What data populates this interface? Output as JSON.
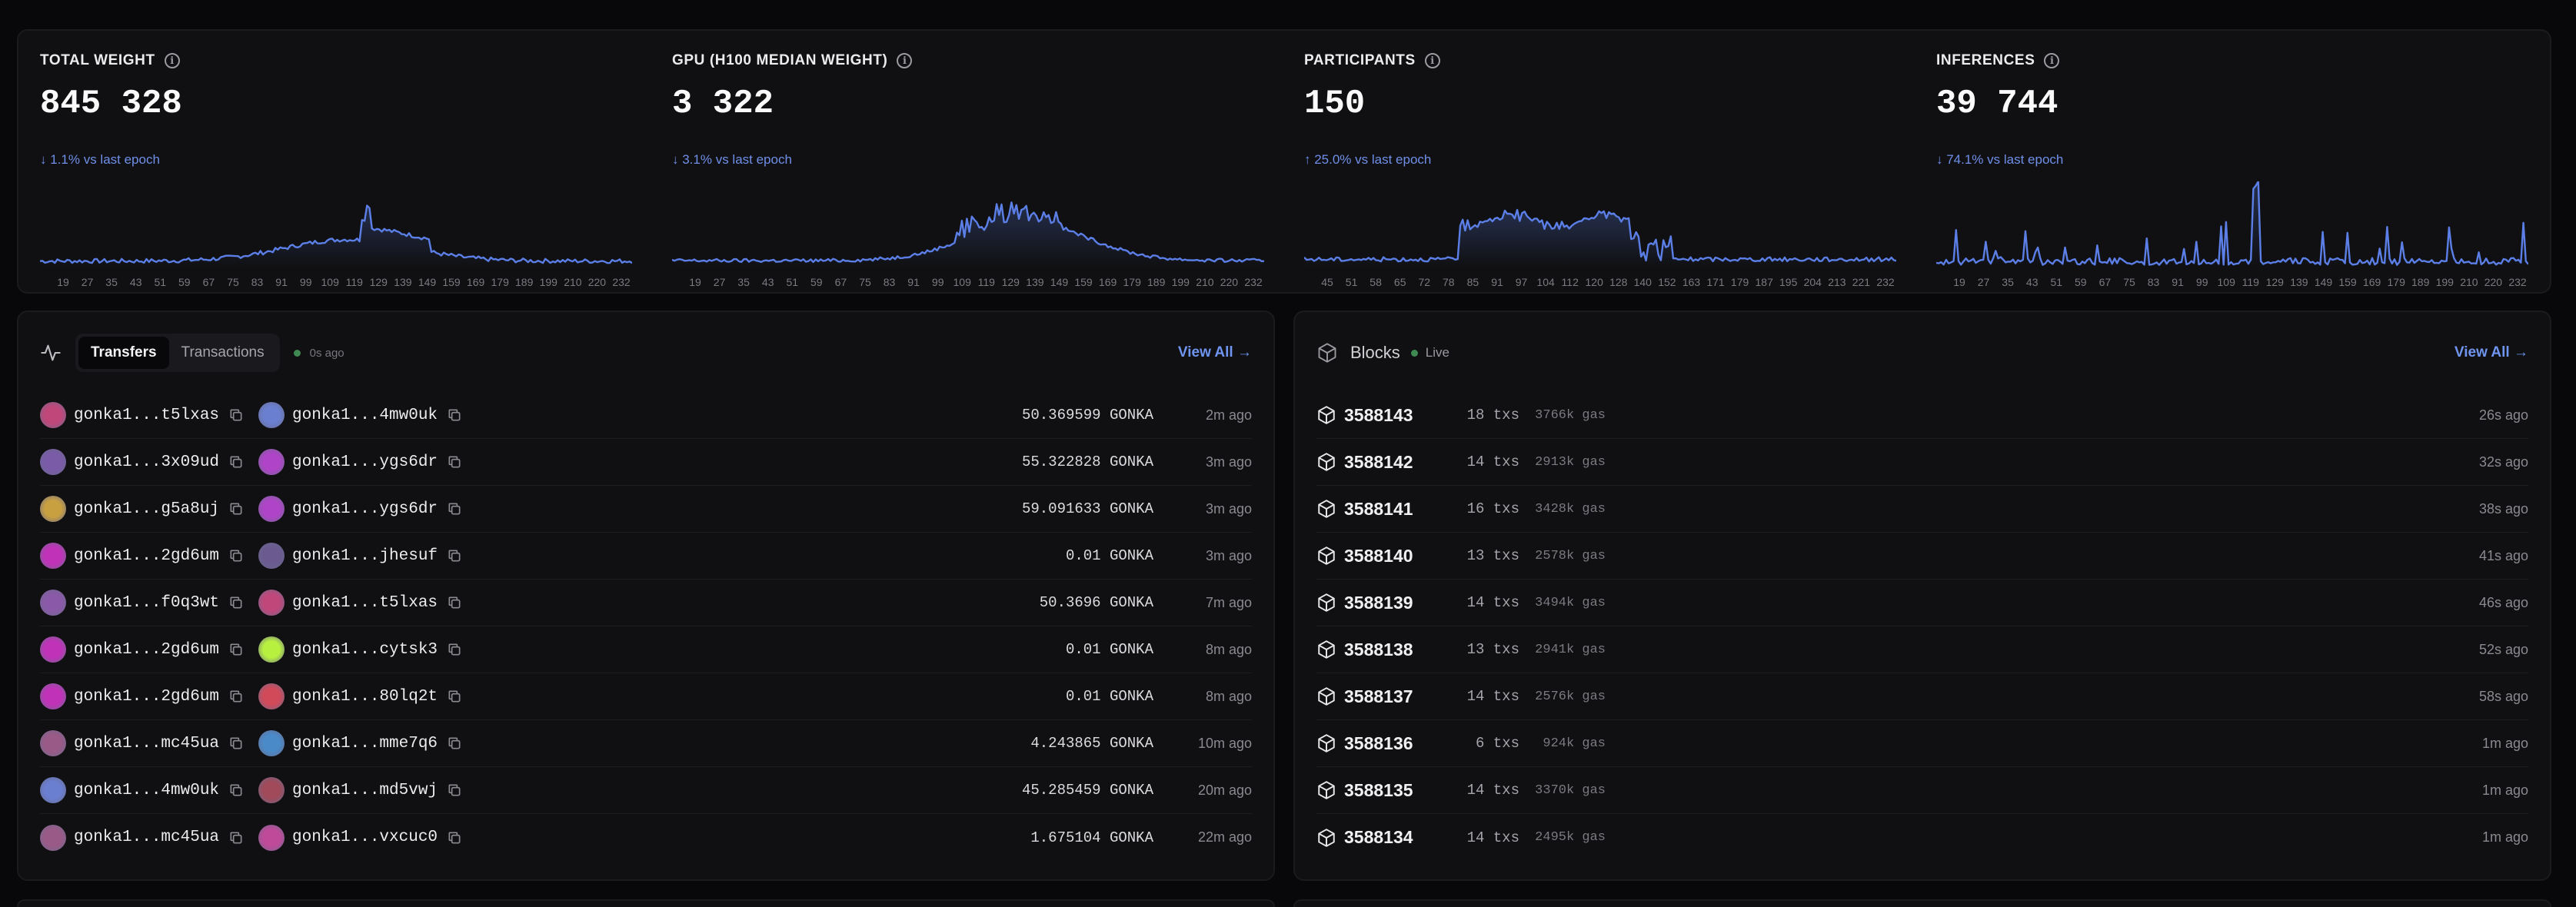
{
  "colors": {
    "accent": "#6f95f0",
    "line": "#5b7fe6",
    "live": "#3f8a52"
  },
  "stats": [
    {
      "title": "TOTAL WEIGHT",
      "value": "845 328",
      "change": "↓ 1.1% vs last epoch",
      "ticks": [
        "19",
        "27",
        "35",
        "43",
        "51",
        "59",
        "67",
        "75",
        "83",
        "91",
        "99",
        "109",
        "119",
        "129",
        "139",
        "149",
        "159",
        "169",
        "179",
        "189",
        "199",
        "210",
        "220",
        "232"
      ]
    },
    {
      "title": "GPU (H100 MEDIAN WEIGHT)",
      "value": "3 322",
      "change": "↓ 3.1% vs last epoch",
      "ticks": [
        "19",
        "27",
        "35",
        "43",
        "51",
        "59",
        "67",
        "75",
        "83",
        "91",
        "99",
        "109",
        "119",
        "129",
        "139",
        "149",
        "159",
        "169",
        "179",
        "189",
        "199",
        "210",
        "220",
        "232"
      ]
    },
    {
      "title": "PARTICIPANTS",
      "value": "150",
      "change": "↑ 25.0% vs last epoch",
      "ticks": [
        "45",
        "51",
        "58",
        "65",
        "72",
        "78",
        "85",
        "91",
        "97",
        "104",
        "112",
        "120",
        "128",
        "140",
        "152",
        "163",
        "171",
        "179",
        "187",
        "195",
        "204",
        "213",
        "221",
        "232"
      ]
    },
    {
      "title": "INFERENCES",
      "value": "39 744",
      "change": "↓ 74.1% vs last epoch",
      "ticks": [
        "19",
        "27",
        "35",
        "43",
        "51",
        "59",
        "67",
        "75",
        "83",
        "91",
        "99",
        "109",
        "119",
        "129",
        "139",
        "149",
        "159",
        "169",
        "179",
        "189",
        "199",
        "210",
        "220",
        "232"
      ]
    }
  ],
  "transfers": {
    "tabs": [
      "Transfers",
      "Transactions"
    ],
    "active_tab": "Transfers",
    "updated": "0s ago",
    "view_all": "View All →",
    "rows": [
      {
        "from": "gonka1...t5lxas",
        "to": "gonka1...4mw0uk",
        "amount": "50.369599 GONKA",
        "time": "2m ago",
        "from_color": "#c0477a",
        "to_color": "#6a7fd0"
      },
      {
        "from": "gonka1...3x09ud",
        "to": "gonka1...ygs6dr",
        "amount": "55.322828 GONKA",
        "time": "3m ago",
        "from_color": "#7a5ba8",
        "to_color": "#b044c8"
      },
      {
        "from": "gonka1...g5a8uj",
        "to": "gonka1...ygs6dr",
        "amount": "59.091633 GONKA",
        "time": "3m ago",
        "from_color": "#c9a040",
        "to_color": "#b044c8"
      },
      {
        "from": "gonka1...2gd6um",
        "to": "gonka1...jhesuf",
        "amount": "0.01 GONKA",
        "time": "3m ago",
        "from_color": "#c032b8",
        "to_color": "#6a5a90"
      },
      {
        "from": "gonka1...f0q3wt",
        "to": "gonka1...t5lxas",
        "amount": "50.3696 GONKA",
        "time": "7m ago",
        "from_color": "#8a5aa8",
        "to_color": "#c0477a"
      },
      {
        "from": "gonka1...2gd6um",
        "to": "gonka1...cytsk3",
        "amount": "0.01 GONKA",
        "time": "8m ago",
        "from_color": "#c032b8",
        "to_color": "#b8f040"
      },
      {
        "from": "gonka1...2gd6um",
        "to": "gonka1...80lq2t",
        "amount": "0.01 GONKA",
        "time": "8m ago",
        "from_color": "#c032b8",
        "to_color": "#d04a5a"
      },
      {
        "from": "gonka1...mc45ua",
        "to": "gonka1...mme7q6",
        "amount": "4.243865 GONKA",
        "time": "10m ago",
        "from_color": "#9a5a88",
        "to_color": "#4a8ac8"
      },
      {
        "from": "gonka1...4mw0uk",
        "to": "gonka1...md5vwj",
        "amount": "45.285459 GONKA",
        "time": "20m ago",
        "from_color": "#6a7fd0",
        "to_color": "#a04a5a"
      },
      {
        "from": "gonka1...mc45ua",
        "to": "gonka1...vxcuc0",
        "amount": "1.675104 GONKA",
        "time": "22m ago",
        "from_color": "#9a5a88",
        "to_color": "#c04a9a"
      }
    ]
  },
  "blocks": {
    "title": "Blocks",
    "status": "Live",
    "view_all": "View All →",
    "rows": [
      {
        "height": "3588143",
        "txs": "18 txs",
        "gas": "3766k gas",
        "time": "26s ago"
      },
      {
        "height": "3588142",
        "txs": "14 txs",
        "gas": "2913k gas",
        "time": "32s ago"
      },
      {
        "height": "3588141",
        "txs": "16 txs",
        "gas": "3428k gas",
        "time": "38s ago"
      },
      {
        "height": "3588140",
        "txs": "13 txs",
        "gas": "2578k gas",
        "time": "41s ago"
      },
      {
        "height": "3588139",
        "txs": "14 txs",
        "gas": "3494k gas",
        "time": "46s ago"
      },
      {
        "height": "3588138",
        "txs": "13 txs",
        "gas": "2941k gas",
        "time": "52s ago"
      },
      {
        "height": "3588137",
        "txs": "14 txs",
        "gas": "2576k gas",
        "time": "58s ago"
      },
      {
        "height": "3588136",
        "txs": "6 txs",
        "gas": "924k gas",
        "time": "1m ago"
      },
      {
        "height": "3588135",
        "txs": "14 txs",
        "gas": "3370k gas",
        "time": "1m ago"
      },
      {
        "height": "3588134",
        "txs": "14 txs",
        "gas": "2495k gas",
        "time": "1m ago"
      }
    ]
  }
}
